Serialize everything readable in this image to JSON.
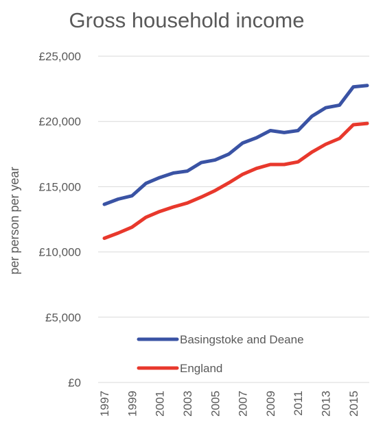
{
  "colors": {
    "basingstoke": "#3a53a4",
    "england": "#e8382c",
    "text": "#595959",
    "grid": "#d9d9d9"
  },
  "chart_data": {
    "type": "line",
    "title": "Gross household income",
    "xlabel": "",
    "ylabel": "per person per year",
    "x": [
      1997,
      1998,
      1999,
      2000,
      2001,
      2002,
      2003,
      2004,
      2005,
      2006,
      2007,
      2008,
      2009,
      2010,
      2011,
      2012,
      2013,
      2014,
      2015,
      2016
    ],
    "x_tick_labels": [
      "1997",
      "1999",
      "2001",
      "2003",
      "2005",
      "2007",
      "2009",
      "2011",
      "2013",
      "2015"
    ],
    "y_tick_labels": [
      "£0",
      "£5,000",
      "£10,000",
      "£15,000",
      "£20,000",
      "£25,000"
    ],
    "y_ticks": [
      0,
      5000,
      10000,
      15000,
      20000,
      25000
    ],
    "ylim": [
      0,
      25000
    ],
    "grid": true,
    "legend_position": "inside-bottom",
    "series": [
      {
        "name": "Basingstoke and Deane",
        "color_key": "basingstoke",
        "values": [
          13650,
          14050,
          14300,
          15250,
          15700,
          16050,
          16200,
          16850,
          17050,
          17500,
          18350,
          18750,
          19300,
          19150,
          19300,
          20400,
          21050,
          21250,
          22650,
          22750
        ]
      },
      {
        "name": "England",
        "color_key": "england",
        "values": [
          11050,
          11450,
          11900,
          12650,
          13100,
          13450,
          13750,
          14200,
          14700,
          15300,
          15950,
          16400,
          16700,
          16700,
          16900,
          17650,
          18250,
          18700,
          19750,
          19850
        ]
      }
    ]
  }
}
